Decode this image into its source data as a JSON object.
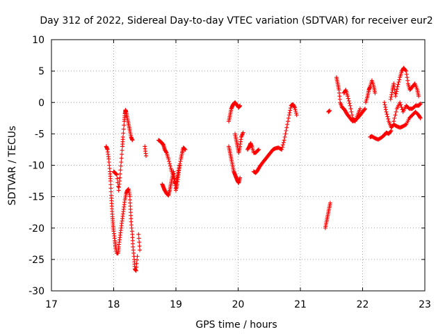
{
  "chart_data": {
    "type": "scatter",
    "title": "Day 312 of 2022, Sidereal Day-to-day VTEC variation (SDTVAR) for receiver eur2",
    "xlabel": "GPS time / hours",
    "ylabel": "SDTVAR / TECUs",
    "xlim": [
      17,
      23
    ],
    "ylim": [
      -30,
      10
    ],
    "x_ticks": [
      17,
      18,
      19,
      20,
      21,
      22,
      23
    ],
    "x_tick_labels": [
      "17",
      "18",
      "19",
      "20",
      "21",
      "22",
      "23"
    ],
    "y_ticks": [
      10,
      5,
      0,
      -5,
      -10,
      -15,
      -20,
      -25,
      -30
    ],
    "y_tick_labels": [
      "10",
      "5",
      "0",
      "-5",
      "-10",
      "-15",
      "-20",
      "-25",
      "-30"
    ],
    "grid": true,
    "marker": "+",
    "color": "#ff0000",
    "series": [
      {
        "name": "eur2",
        "segments": [
          [
            [
              17.88,
              -7
            ],
            [
              17.9,
              -7.5
            ],
            [
              17.92,
              -9
            ],
            [
              17.94,
              -11
            ],
            [
              17.95,
              -12.5
            ],
            [
              17.96,
              -14.8
            ],
            [
              17.97,
              -16.5
            ],
            [
              17.98,
              -18.2
            ],
            [
              17.99,
              -19.5
            ],
            [
              18.0,
              -20.5
            ],
            [
              18.02,
              -22
            ],
            [
              18.03,
              -23
            ],
            [
              18.05,
              -24
            ],
            [
              18.07,
              -24
            ],
            [
              18.08,
              -23
            ],
            [
              18.1,
              -21.5
            ],
            [
              18.12,
              -20
            ],
            [
              18.14,
              -18.5
            ],
            [
              18.16,
              -17
            ],
            [
              18.18,
              -15.5
            ],
            [
              18.2,
              -14.5
            ],
            [
              18.22,
              -14
            ],
            [
              18.24,
              -13.8
            ],
            [
              18.26,
              -15
            ],
            [
              18.27,
              -17
            ],
            [
              18.28,
              -19
            ],
            [
              18.3,
              -21
            ],
            [
              18.31,
              -23
            ],
            [
              18.33,
              -25
            ],
            [
              18.34,
              -26.5
            ],
            [
              18.36,
              -26.8
            ],
            [
              18.38,
              -24.5
            ]
          ],
          [
            [
              18.0,
              -11
            ],
            [
              18.02,
              -11.2
            ],
            [
              18.05,
              -11.5
            ],
            [
              18.08,
              -14
            ],
            [
              18.1,
              -12
            ],
            [
              18.12,
              -9.5
            ],
            [
              18.14,
              -7
            ],
            [
              18.15,
              -5.5
            ],
            [
              18.17,
              -3
            ],
            [
              18.18,
              -1.8
            ],
            [
              18.19,
              -1.2
            ],
            [
              18.2,
              -1.5
            ],
            [
              18.22,
              -2.5
            ],
            [
              18.24,
              -3.5
            ],
            [
              18.26,
              -4.5
            ],
            [
              18.28,
              -5.5
            ],
            [
              18.3,
              -6
            ]
          ],
          [
            [
              18.4,
              -21
            ],
            [
              18.42,
              -23.5
            ],
            [
              18.5,
              -7
            ],
            [
              18.52,
              -8.5
            ]
          ],
          [
            [
              18.72,
              -6
            ],
            [
              18.75,
              -6.2
            ],
            [
              18.78,
              -6.5
            ],
            [
              18.8,
              -6.8
            ],
            [
              18.82,
              -7.5
            ],
            [
              18.85,
              -8
            ],
            [
              18.88,
              -9
            ],
            [
              18.92,
              -10.5
            ],
            [
              18.95,
              -11.5
            ],
            [
              18.98,
              -12.5
            ],
            [
              19.0,
              -13
            ],
            [
              19.02,
              -12
            ],
            [
              19.05,
              -10.5
            ],
            [
              19.08,
              -9
            ],
            [
              19.1,
              -8
            ],
            [
              19.12,
              -7.2
            ],
            [
              19.15,
              -7.5
            ]
          ],
          [
            [
              18.78,
              -13
            ],
            [
              18.8,
              -13.5
            ],
            [
              18.82,
              -14
            ],
            [
              18.85,
              -14.5
            ],
            [
              18.88,
              -14.8
            ],
            [
              18.9,
              -14
            ],
            [
              18.92,
              -13
            ],
            [
              18.94,
              -12
            ],
            [
              18.96,
              -11
            ],
            [
              18.98,
              -12.5
            ],
            [
              19.0,
              -14
            ],
            [
              19.02,
              -13
            ],
            [
              19.04,
              -11.5
            ],
            [
              19.06,
              -10
            ]
          ],
          [
            [
              19.85,
              -3
            ],
            [
              19.87,
              -2
            ],
            [
              19.89,
              -1
            ],
            [
              19.91,
              -0.5
            ],
            [
              19.93,
              -0.2
            ],
            [
              19.95,
              0
            ],
            [
              19.97,
              -0.3
            ],
            [
              19.99,
              -0.5
            ],
            [
              20.01,
              -0.8
            ],
            [
              20.03,
              -0.5
            ]
          ],
          [
            [
              19.85,
              -7
            ],
            [
              19.87,
              -8
            ],
            [
              19.89,
              -9
            ],
            [
              19.91,
              -10
            ],
            [
              19.93,
              -11
            ],
            [
              19.95,
              -11.5
            ],
            [
              19.97,
              -12
            ],
            [
              19.99,
              -12.5
            ],
            [
              20.01,
              -12.8
            ],
            [
              20.03,
              -12
            ]
          ],
          [
            [
              19.95,
              -5
            ],
            [
              19.97,
              -6
            ],
            [
              19.99,
              -7
            ],
            [
              20.01,
              -8
            ],
            [
              20.03,
              -7
            ],
            [
              20.05,
              -5.5
            ],
            [
              20.08,
              -4.8
            ]
          ],
          [
            [
              20.15,
              -7.5
            ],
            [
              20.18,
              -7
            ],
            [
              20.2,
              -6.5
            ],
            [
              20.22,
              -7
            ],
            [
              20.25,
              -8
            ],
            [
              20.28,
              -8
            ],
            [
              20.3,
              -7.8
            ],
            [
              20.33,
              -7.5
            ]
          ],
          [
            [
              20.25,
              -11
            ],
            [
              20.28,
              -11.2
            ],
            [
              20.3,
              -11
            ],
            [
              20.33,
              -10.5
            ],
            [
              20.36,
              -10
            ],
            [
              20.4,
              -9.5
            ],
            [
              20.44,
              -9
            ],
            [
              20.48,
              -8.5
            ],
            [
              20.52,
              -8
            ],
            [
              20.56,
              -7.5
            ],
            [
              20.6,
              -7.3
            ],
            [
              20.65,
              -7.2
            ],
            [
              20.7,
              -7.5
            ],
            [
              20.74,
              -6
            ],
            [
              20.78,
              -4
            ],
            [
              20.82,
              -2
            ],
            [
              20.85,
              -0.5
            ],
            [
              20.88,
              -0.3
            ],
            [
              20.91,
              -0.8
            ],
            [
              20.94,
              -2
            ]
          ],
          [
            [
              21.4,
              -20
            ],
            [
              21.42,
              -19
            ],
            [
              21.44,
              -18
            ],
            [
              21.46,
              -17
            ],
            [
              21.48,
              -16
            ]
          ],
          [
            [
              21.45,
              -1.5
            ],
            [
              21.47,
              -1.3
            ]
          ],
          [
            [
              21.58,
              4
            ],
            [
              21.6,
              3
            ],
            [
              21.62,
              2
            ],
            [
              21.64,
              0
            ],
            [
              21.67,
              -0.8
            ],
            [
              21.7,
              -1
            ],
            [
              21.73,
              -1.5
            ],
            [
              21.76,
              -2
            ],
            [
              21.8,
              -2.5
            ],
            [
              21.84,
              -3
            ],
            [
              21.88,
              -2.8
            ],
            [
              21.92,
              -2.5
            ],
            [
              21.96,
              -2
            ],
            [
              22.0,
              -1.5
            ],
            [
              22.04,
              -1
            ]
          ],
          [
            [
              21.7,
              1.5
            ],
            [
              21.73,
              2
            ],
            [
              21.76,
              1
            ],
            [
              21.8,
              -0.5
            ],
            [
              21.84,
              -2.5
            ],
            [
              21.88,
              -3
            ],
            [
              21.92,
              -2
            ],
            [
              21.96,
              -1
            ]
          ],
          [
            [
              22.05,
              0
            ],
            [
              22.08,
              1
            ],
            [
              22.1,
              2
            ],
            [
              22.12,
              2.5
            ],
            [
              22.15,
              3.5
            ],
            [
              22.18,
              2.5
            ],
            [
              22.2,
              1.5
            ]
          ],
          [
            [
              22.12,
              -5.5
            ],
            [
              22.15,
              -5.4
            ],
            [
              22.2,
              -5.7
            ],
            [
              22.25,
              -5.9
            ],
            [
              22.3,
              -5.6
            ],
            [
              22.35,
              -5.2
            ],
            [
              22.38,
              -4.8
            ],
            [
              22.42,
              -5
            ],
            [
              22.46,
              -4.5
            ]
          ],
          [
            [
              22.35,
              0
            ],
            [
              22.38,
              -1.5
            ],
            [
              22.42,
              -3
            ],
            [
              22.46,
              -4
            ],
            [
              22.5,
              -3.5
            ],
            [
              22.55,
              -3.8
            ],
            [
              22.6,
              -4
            ],
            [
              22.65,
              -3.8
            ],
            [
              22.7,
              -3.5
            ],
            [
              22.75,
              -2.5
            ],
            [
              22.8,
              -2
            ],
            [
              22.85,
              -1.5
            ],
            [
              22.9,
              -2
            ],
            [
              22.93,
              -2.5
            ]
          ],
          [
            [
              22.45,
              0.5
            ],
            [
              22.48,
              2
            ],
            [
              22.5,
              3
            ],
            [
              22.53,
              1
            ],
            [
              22.56,
              2.5
            ],
            [
              22.6,
              4
            ],
            [
              22.63,
              5
            ],
            [
              22.66,
              5.5
            ],
            [
              22.7,
              5
            ],
            [
              22.73,
              3
            ],
            [
              22.76,
              2
            ],
            [
              22.8,
              2.5
            ],
            [
              22.84,
              3
            ],
            [
              22.88,
              2
            ],
            [
              22.9,
              1
            ]
          ],
          [
            [
              22.5,
              -3
            ],
            [
              22.55,
              -1
            ],
            [
              22.6,
              0
            ],
            [
              22.65,
              -1.5
            ],
            [
              22.7,
              -0.5
            ],
            [
              22.75,
              -1
            ],
            [
              22.8,
              -1
            ],
            [
              22.85,
              -0.5
            ],
            [
              22.9,
              -0.5
            ],
            [
              22.93,
              -0.2
            ]
          ]
        ]
      }
    ]
  }
}
